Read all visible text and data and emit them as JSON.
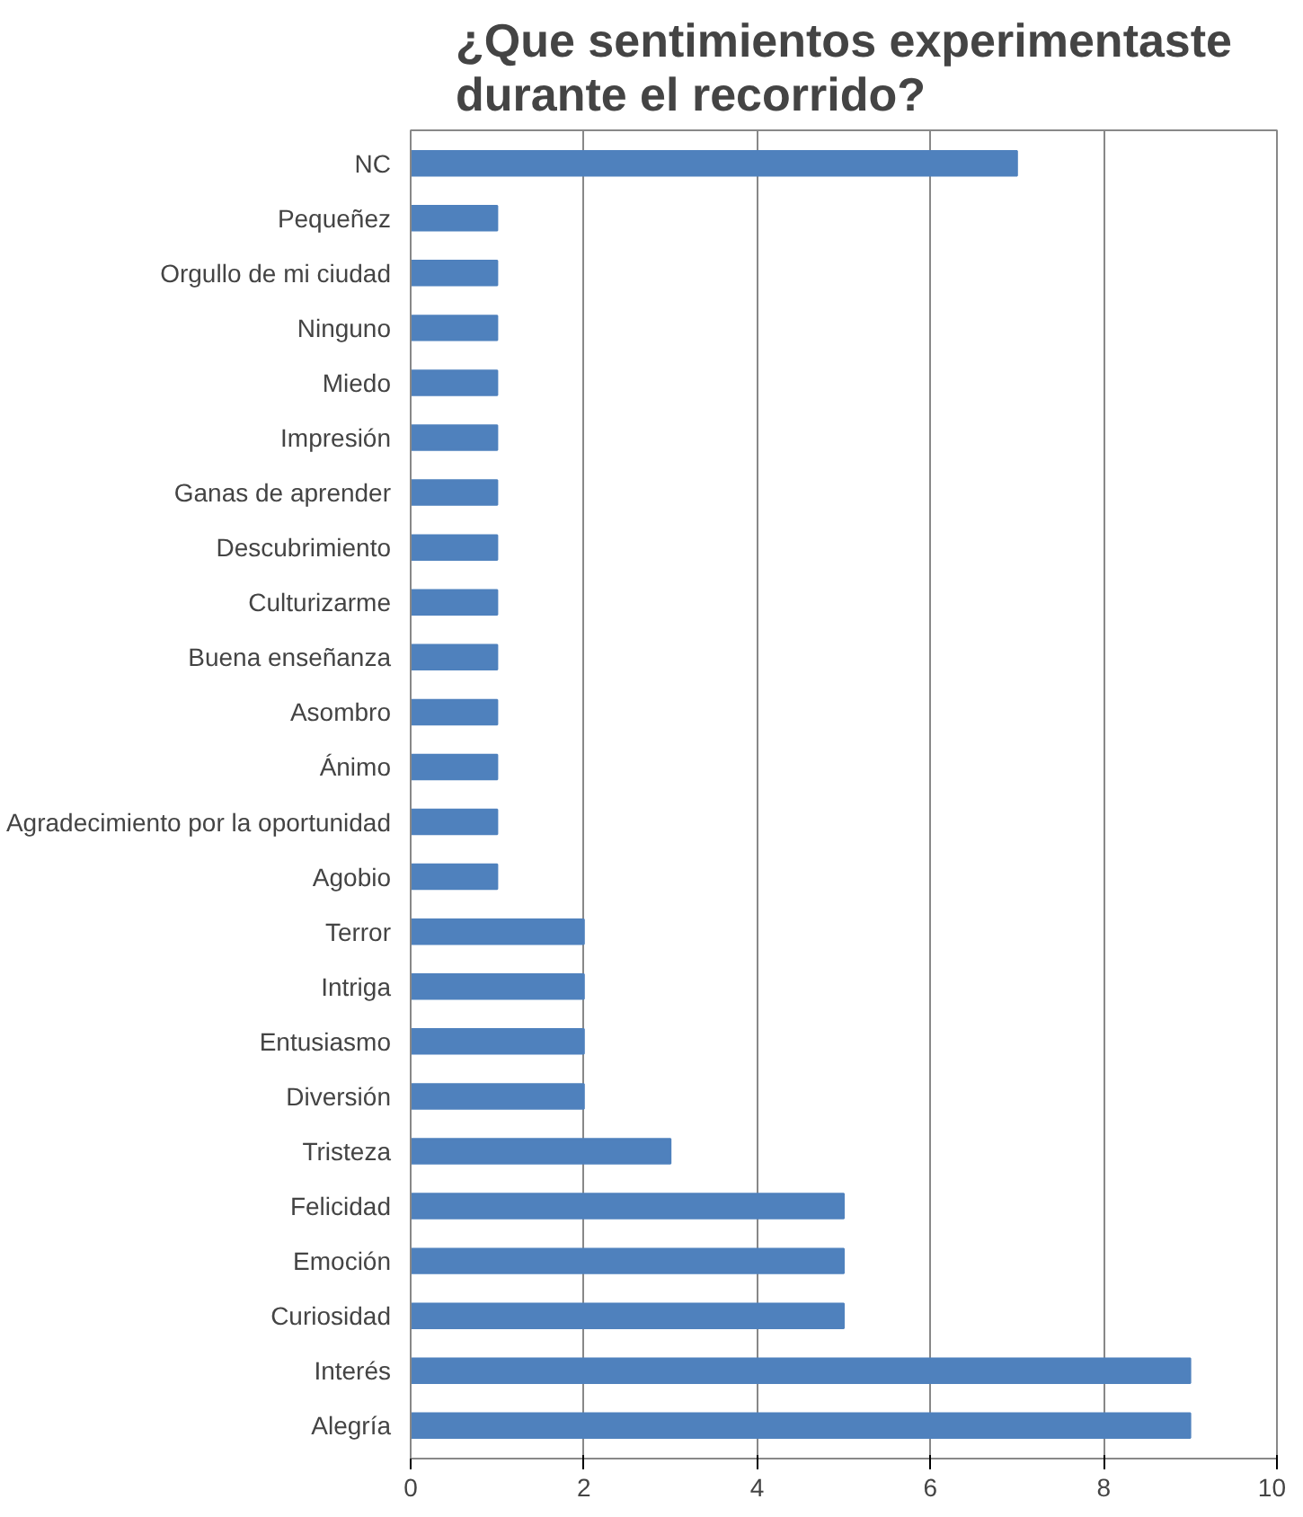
{
  "chart_data": {
    "type": "bar",
    "orientation": "horizontal",
    "title": "¿Que sentimientos experimentaste\ndurante el recorrido?",
    "categories": [
      "NC",
      "Pequeñez",
      "Orgullo de mi ciudad",
      "Ninguno",
      "Miedo",
      "Impresión",
      "Ganas de aprender",
      "Descubrimiento",
      "Culturizarme",
      "Buena enseñanza",
      "Asombro",
      "Ánimo",
      "Agradecimiento por la oportunidad",
      "Agobio",
      "Terror",
      "Intriga",
      "Entusiasmo",
      "Diversión",
      "Tristeza",
      "Felicidad",
      "Emoción",
      "Curiosidad",
      "Interés",
      "Alegría"
    ],
    "values": [
      7,
      1,
      1,
      1,
      1,
      1,
      1,
      1,
      1,
      1,
      1,
      1,
      1,
      1,
      2,
      2,
      2,
      2,
      3,
      5,
      5,
      5,
      9,
      9
    ],
    "color": "#4f81bd",
    "xlim": [
      0,
      10
    ],
    "xticks": [
      0,
      2,
      4,
      6,
      8,
      10
    ],
    "grid": "x"
  }
}
